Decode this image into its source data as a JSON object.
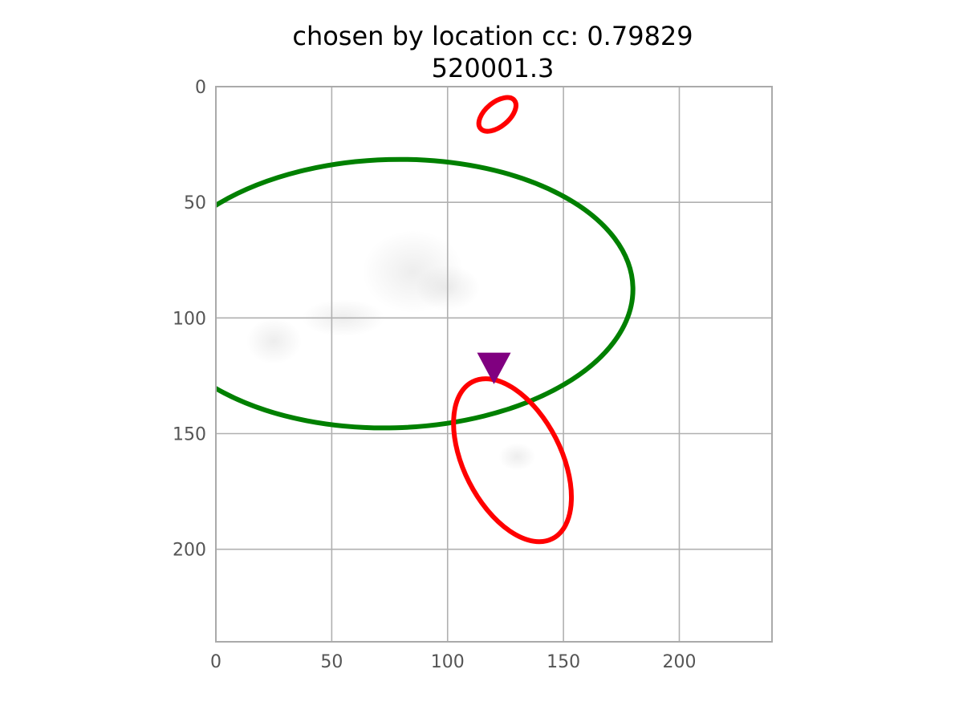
{
  "chart_data": {
    "type": "scatter",
    "title_line1": "chosen by location cc: 0.79829",
    "title_line2": "520001.3",
    "xlabel": "",
    "ylabel": "",
    "xlim": [
      0,
      240
    ],
    "ylim": [
      240,
      0
    ],
    "y_inverted": true,
    "grid": true,
    "x_ticks": [
      0,
      50,
      100,
      150,
      200
    ],
    "y_ticks": [
      0,
      50,
      100,
      150,
      200
    ],
    "x_tick_labels": [
      "0",
      "50",
      "100",
      "150",
      "200"
    ],
    "y_tick_labels": [
      "0",
      "50",
      "100",
      "150",
      "200"
    ],
    "background_image": "faint grayscale blob",
    "ellipses": [
      {
        "center": [
          76,
          89.5
        ],
        "semi_axes": [
          104,
          58
        ],
        "angle_deg": -1.5,
        "color": "#008000"
      },
      {
        "center": [
          121.5,
          12
        ],
        "semi_axes": [
          9.5,
          5.2
        ],
        "angle_deg": -40,
        "color": "#ff0000"
      },
      {
        "center": [
          128,
          161.5
        ],
        "semi_axes": [
          38,
          21
        ],
        "angle_deg": 63,
        "color": "#ff0000"
      }
    ],
    "markers": [
      {
        "x": 120,
        "y": 121,
        "shape": "triangle-down",
        "color": "#800080"
      }
    ]
  }
}
